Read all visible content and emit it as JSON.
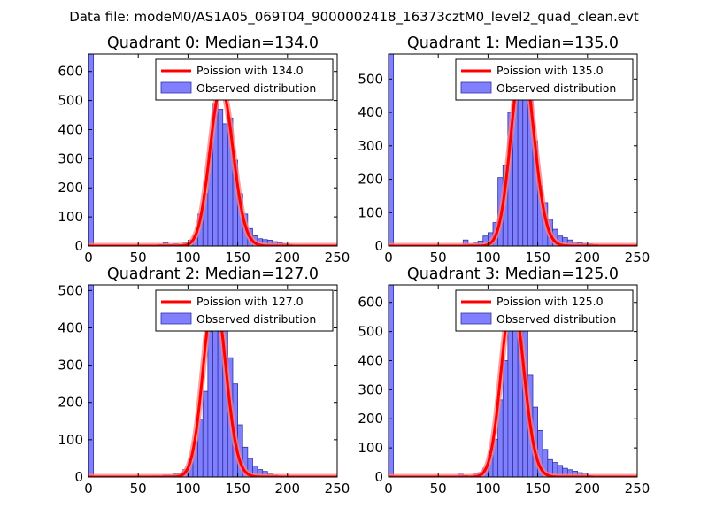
{
  "suptitle": "Data file: modeM0/AS1A05_069T04_9000002418_16373cztM0_level2_quad_clean.evt",
  "colors": {
    "bar_fill": "#8080ff",
    "bar_edge": "#3030a0",
    "poisson": "#ff0000",
    "poisson_glow": "#ff8080",
    "axis": "#000000"
  },
  "chart_data": [
    {
      "type": "bar",
      "title": "Quadrant 0: Median=134.0",
      "xlim": [
        0,
        250
      ],
      "ylim": [
        0,
        660
      ],
      "xticks": [
        0,
        50,
        100,
        150,
        200,
        250
      ],
      "yticks": [
        0,
        100,
        200,
        300,
        400,
        500,
        600
      ],
      "bin_width": 5,
      "bins": [
        [
          0,
          660
        ],
        [
          70,
          5
        ],
        [
          75,
          12
        ],
        [
          80,
          5
        ],
        [
          85,
          8
        ],
        [
          90,
          5
        ],
        [
          95,
          10
        ],
        [
          100,
          20
        ],
        [
          105,
          38
        ],
        [
          110,
          110
        ],
        [
          115,
          180
        ],
        [
          120,
          320
        ],
        [
          125,
          490
        ],
        [
          130,
          470
        ],
        [
          135,
          420
        ],
        [
          140,
          440
        ],
        [
          145,
          295
        ],
        [
          150,
          180
        ],
        [
          155,
          110
        ],
        [
          160,
          60
        ],
        [
          165,
          35
        ],
        [
          170,
          25
        ],
        [
          175,
          22
        ],
        [
          180,
          20
        ],
        [
          185,
          15
        ],
        [
          190,
          12
        ],
        [
          195,
          8
        ],
        [
          200,
          5
        ],
        [
          205,
          3
        ],
        [
          215,
          2
        ],
        [
          220,
          2
        ]
      ],
      "poisson_mean": 134.0,
      "poisson_peak": 545,
      "legend": [
        "Poission with 134.0",
        "Observed distribution"
      ]
    },
    {
      "type": "bar",
      "title": "Quadrant 1: Median=135.0",
      "xlim": [
        0,
        250
      ],
      "ylim": [
        0,
        575
      ],
      "xticks": [
        0,
        50,
        100,
        150,
        200,
        250
      ],
      "yticks": [
        0,
        100,
        200,
        300,
        400,
        500
      ],
      "bin_width": 5,
      "bins": [
        [
          0,
          575
        ],
        [
          75,
          18
        ],
        [
          80,
          5
        ],
        [
          85,
          12
        ],
        [
          90,
          15
        ],
        [
          95,
          30
        ],
        [
          100,
          40
        ],
        [
          105,
          70
        ],
        [
          110,
          205
        ],
        [
          115,
          240
        ],
        [
          120,
          400
        ],
        [
          125,
          460
        ],
        [
          130,
          540
        ],
        [
          135,
          540
        ],
        [
          140,
          480
        ],
        [
          145,
          315
        ],
        [
          150,
          180
        ],
        [
          155,
          130
        ],
        [
          160,
          80
        ],
        [
          165,
          50
        ],
        [
          170,
          30
        ],
        [
          175,
          25
        ],
        [
          180,
          18
        ],
        [
          185,
          12
        ],
        [
          190,
          10
        ],
        [
          195,
          8
        ],
        [
          200,
          6
        ],
        [
          205,
          4
        ],
        [
          210,
          2
        ]
      ],
      "poisson_mean": 135.0,
      "poisson_peak": 550,
      "legend": [
        "Poission with 135.0",
        "Observed distribution"
      ]
    },
    {
      "type": "bar",
      "title": "Quadrant 2: Median=127.0",
      "xlim": [
        0,
        250
      ],
      "ylim": [
        0,
        515
      ],
      "xticks": [
        0,
        50,
        100,
        150,
        200,
        250
      ],
      "yticks": [
        0,
        100,
        200,
        300,
        400,
        500
      ],
      "bin_width": 5,
      "bins": [
        [
          0,
          515
        ],
        [
          65,
          3
        ],
        [
          70,
          3
        ],
        [
          75,
          5
        ],
        [
          80,
          5
        ],
        [
          85,
          8
        ],
        [
          90,
          10
        ],
        [
          95,
          20
        ],
        [
          100,
          40
        ],
        [
          105,
          95
        ],
        [
          110,
          155
        ],
        [
          115,
          230
        ],
        [
          120,
          390
        ],
        [
          125,
          480
        ],
        [
          130,
          390
        ],
        [
          135,
          440
        ],
        [
          140,
          320
        ],
        [
          145,
          250
        ],
        [
          150,
          140
        ],
        [
          155,
          80
        ],
        [
          160,
          50
        ],
        [
          165,
          30
        ],
        [
          170,
          20
        ],
        [
          175,
          15
        ],
        [
          180,
          8
        ],
        [
          185,
          5
        ],
        [
          190,
          3
        ]
      ],
      "poisson_mean": 127.0,
      "poisson_peak": 490,
      "legend": [
        "Poission with 127.0",
        "Observed distribution"
      ]
    },
    {
      "type": "bar",
      "title": "Quadrant 3: Median=125.0",
      "xlim": [
        0,
        250
      ],
      "ylim": [
        0,
        660
      ],
      "xticks": [
        0,
        50,
        100,
        150,
        200,
        250
      ],
      "yticks": [
        0,
        100,
        200,
        300,
        400,
        500,
        600
      ],
      "bin_width": 5,
      "bins": [
        [
          0,
          660
        ],
        [
          70,
          10
        ],
        [
          75,
          5
        ],
        [
          80,
          3
        ],
        [
          85,
          10
        ],
        [
          90,
          15
        ],
        [
          95,
          30
        ],
        [
          100,
          75
        ],
        [
          105,
          130
        ],
        [
          110,
          265
        ],
        [
          115,
          400
        ],
        [
          120,
          590
        ],
        [
          125,
          610
        ],
        [
          130,
          500
        ],
        [
          135,
          580
        ],
        [
          140,
          350
        ],
        [
          145,
          240
        ],
        [
          150,
          160
        ],
        [
          155,
          95
        ],
        [
          160,
          60
        ],
        [
          165,
          50
        ],
        [
          170,
          40
        ],
        [
          175,
          30
        ],
        [
          180,
          25
        ],
        [
          185,
          20
        ],
        [
          190,
          15
        ],
        [
          195,
          10
        ],
        [
          200,
          5
        ]
      ],
      "poisson_mean": 125.0,
      "poisson_peak": 620,
      "legend": [
        "Poission with 125.0",
        "Observed distribution"
      ]
    }
  ]
}
